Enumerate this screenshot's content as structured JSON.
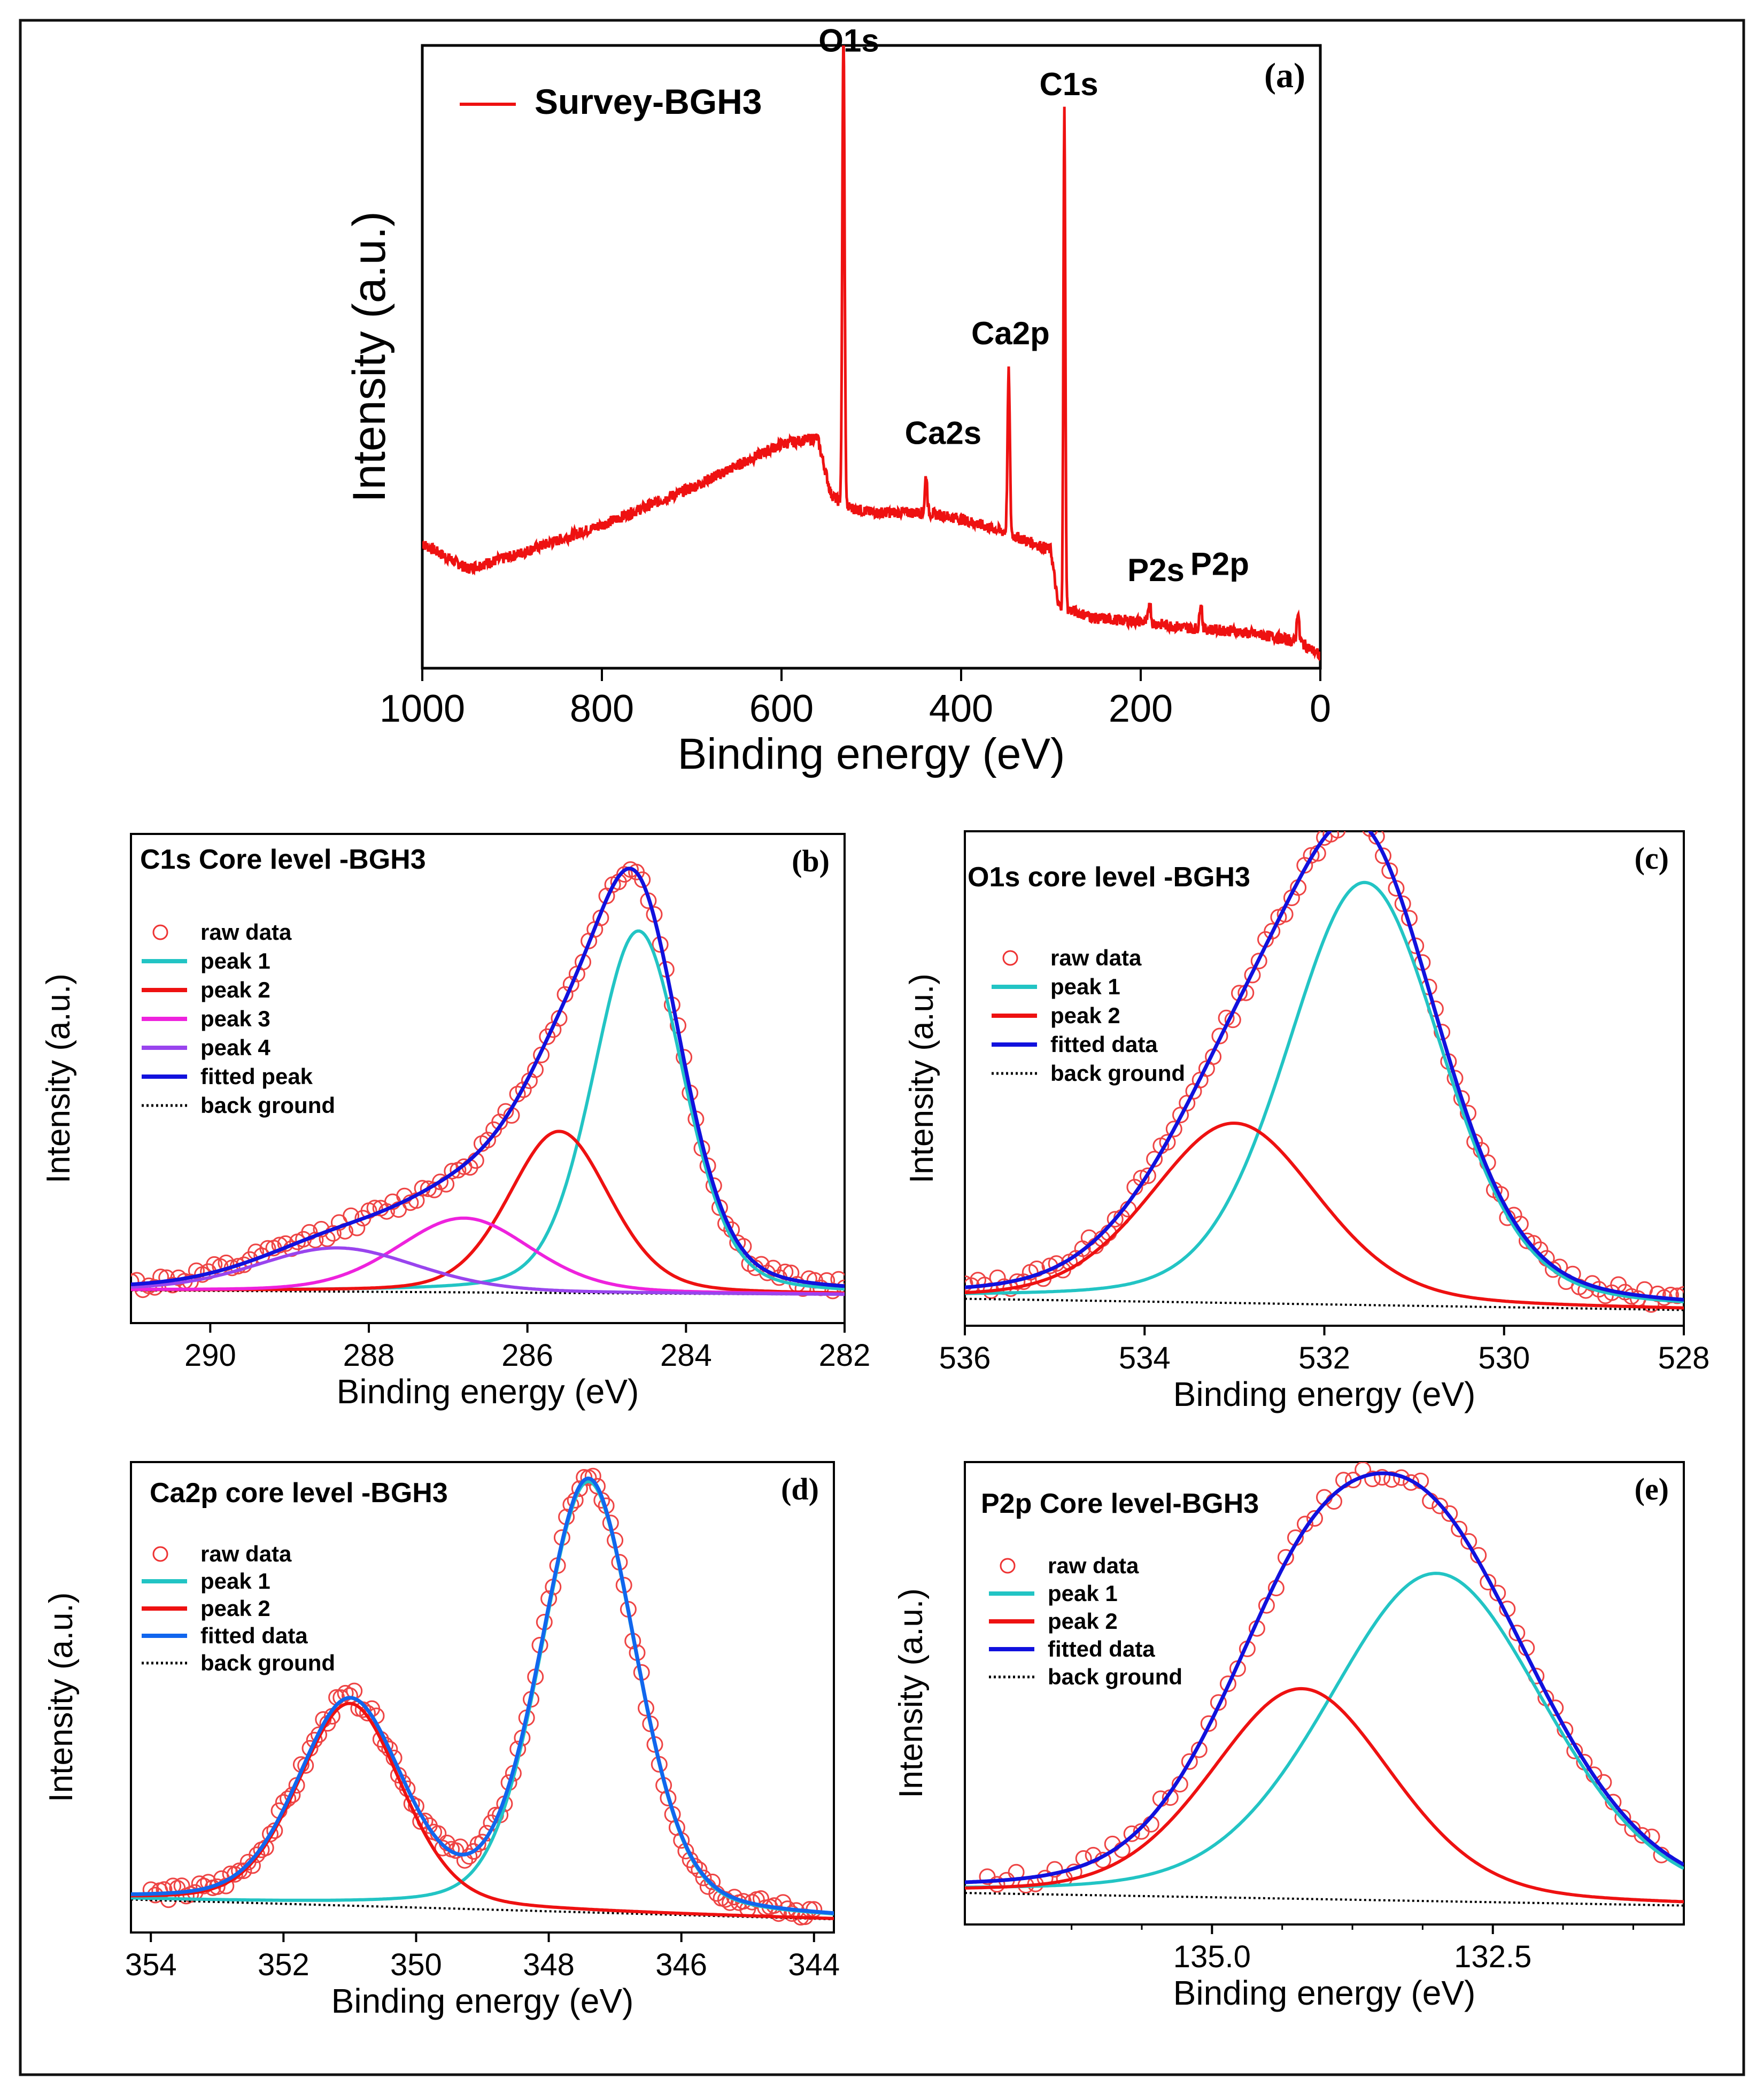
{
  "figure": {
    "panels": [
      "a",
      "b",
      "c",
      "d",
      "e"
    ]
  },
  "chart_data": [
    {
      "panel": "(a)",
      "type": "line",
      "title": "",
      "xlabel": "Binding energy (eV)",
      "ylabel": "Intensity (a.u.)",
      "xlim": [
        1000,
        0
      ],
      "ylim": [
        0,
        1
      ],
      "xticks": [
        1000,
        800,
        600,
        400,
        200,
        0
      ],
      "legend": [
        {
          "label": "Survey-BGH3",
          "color": "#ee1111",
          "style": "line"
        }
      ],
      "legend_position": "top-left",
      "baseline": [
        [
          1000,
          0.2
        ],
        [
          975,
          0.18
        ],
        [
          950,
          0.16
        ],
        [
          900,
          0.18
        ],
        [
          800,
          0.23
        ],
        [
          700,
          0.29
        ],
        [
          600,
          0.36
        ],
        [
          560,
          0.37
        ],
        [
          545,
          0.28
        ],
        [
          530,
          0.26
        ],
        [
          500,
          0.25
        ],
        [
          440,
          0.25
        ],
        [
          400,
          0.24
        ],
        [
          355,
          0.22
        ],
        [
          300,
          0.19
        ],
        [
          292,
          0.1
        ],
        [
          250,
          0.08
        ],
        [
          200,
          0.075
        ],
        [
          150,
          0.065
        ],
        [
          100,
          0.06
        ],
        [
          50,
          0.05
        ],
        [
          20,
          0.04
        ],
        [
          0,
          0.02
        ]
      ],
      "peaks": [
        {
          "name": "O1s",
          "x": 531,
          "height": 0.76,
          "width": 3
        },
        {
          "name": "Ca2s",
          "x": 439,
          "height": 0.06,
          "width": 3
        },
        {
          "name": "Ca2p",
          "x": 347,
          "height": 0.26,
          "width": 3
        },
        {
          "name": "C1s",
          "x": 285,
          "height": 0.8,
          "width": 2.5
        },
        {
          "name": "P2s",
          "x": 190,
          "height": 0.035,
          "width": 3
        },
        {
          "name": "P2p",
          "x": 133,
          "height": 0.045,
          "width": 3
        },
        {
          "name": "",
          "x": 25,
          "height": 0.05,
          "width": 3
        }
      ],
      "peak_labels": [
        {
          "text": "O1s",
          "x": 525,
          "y": 0.99
        },
        {
          "text": "Ca2s",
          "x": 420,
          "y": 0.36
        },
        {
          "text": "Ca2p",
          "x": 345,
          "y": 0.52
        },
        {
          "text": "C1s",
          "x": 280,
          "y": 0.92
        },
        {
          "text": "P2s",
          "x": 183,
          "y": 0.14
        },
        {
          "text": "P2p",
          "x": 112,
          "y": 0.15
        }
      ]
    },
    {
      "panel": "(b)",
      "type": "line",
      "title": "C1s Core level -BGH3",
      "xlabel": "Binding energy (eV)",
      "ylabel": "Intensity (a.u.)",
      "xlim": [
        291,
        282
      ],
      "ylim": [
        -0.07,
        1.05
      ],
      "xticks": [
        290,
        288,
        286,
        284,
        282
      ],
      "legend": [
        {
          "label": "raw data",
          "color": "#ee3333",
          "style": "circle"
        },
        {
          "label": "peak 1",
          "color": "#22c4c4",
          "style": "line"
        },
        {
          "label": "peak 2",
          "color": "#ee1111",
          "style": "line"
        },
        {
          "label": "peak 3",
          "color": "#ee22dd",
          "style": "line"
        },
        {
          "label": "peak 4",
          "color": "#9944ee",
          "style": "line"
        },
        {
          "label": "fitted peak",
          "color": "#1111dd",
          "style": "line"
        },
        {
          "label": "back ground",
          "color": "#000000",
          "style": "dotted"
        }
      ],
      "legend_position": "top-left",
      "background": {
        "y_left": 0.005,
        "y_right": -0.005
      },
      "components": [
        {
          "name": "peak 1",
          "center": 284.6,
          "fwhm": 1.35,
          "height": 0.83
        },
        {
          "name": "peak 2",
          "center": 285.6,
          "fwhm": 1.5,
          "height": 0.37
        },
        {
          "name": "peak 3",
          "center": 286.8,
          "fwhm": 2.0,
          "height": 0.17
        },
        {
          "name": "peak 4",
          "center": 288.4,
          "fwhm": 2.4,
          "height": 0.1
        }
      ],
      "raw_range": [
        291,
        282
      ],
      "raw_n": 120
    },
    {
      "panel": "(c)",
      "type": "line",
      "title": "O1s core level -BGH3",
      "xlabel": "Binding energy (eV)",
      "ylabel": "Intensity (a.u.)",
      "xlim": [
        536,
        528
      ],
      "ylim": [
        -0.04,
        1.06
      ],
      "xticks": [
        536,
        534,
        532,
        530,
        528
      ],
      "legend": [
        {
          "label": "raw data",
          "color": "#ee3333",
          "style": "circle"
        },
        {
          "label": "peak 1",
          "color": "#22c4c4",
          "style": "line"
        },
        {
          "label": "peak 2",
          "color": "#ee1111",
          "style": "line"
        },
        {
          "label": "fitted data",
          "color": "#1111dd",
          "style": "line"
        },
        {
          "label": "back ground",
          "color": "#000000",
          "style": "dotted"
        }
      ],
      "legend_position": "top-left",
      "background": {
        "y_left": 0.02,
        "y_right": -0.005
      },
      "components": [
        {
          "name": "peak 1",
          "center": 531.55,
          "fwhm": 2.05,
          "height": 0.94
        },
        {
          "name": "peak 2",
          "center": 533.0,
          "fwhm": 2.2,
          "height": 0.4
        }
      ],
      "raw_range": [
        536,
        528
      ],
      "raw_n": 110
    },
    {
      "panel": "(d)",
      "type": "line",
      "title": "Ca2p core level -BGH3",
      "xlabel": "Binding energy (eV)",
      "ylabel": "Intensity (a.u.)",
      "xlim": [
        354.3,
        343.7
      ],
      "ylim": [
        -0.03,
        1.04
      ],
      "xticks": [
        354,
        352,
        350,
        348,
        346,
        344
      ],
      "legend": [
        {
          "label": "raw data",
          "color": "#ee3333",
          "style": "circle"
        },
        {
          "label": "peak 1",
          "color": "#22c4c4",
          "style": "line"
        },
        {
          "label": "peak 2",
          "color": "#ee1111",
          "style": "line"
        },
        {
          "label": "fitted data",
          "color": "#1166ee",
          "style": "line"
        },
        {
          "label": "back ground",
          "color": "#000000",
          "style": "dotted"
        }
      ],
      "legend_position": "top-left",
      "background": {
        "y_left": 0.045,
        "y_right": 0.0
      },
      "components": [
        {
          "name": "peak 1",
          "center": 347.4,
          "fwhm": 1.7,
          "height": 0.98
        },
        {
          "name": "peak 2",
          "center": 351.0,
          "fwhm": 1.85,
          "height": 0.46
        }
      ],
      "raw_range": [
        354,
        344
      ],
      "raw_n": 150
    },
    {
      "panel": "(e)",
      "type": "line",
      "title": "P2p Core level-BGH3",
      "xlabel": "Binding energy (eV)",
      "ylabel": "Intensity (a.u.)",
      "xlim": [
        137.2,
        130.8
      ],
      "ylim": [
        -0.04,
        1.06
      ],
      "xticks": [
        135.0,
        132.5
      ],
      "xtick_labels": [
        "135.0",
        "132.5"
      ],
      "legend": [
        {
          "label": "raw data",
          "color": "#ee3333",
          "style": "circle"
        },
        {
          "label": "peak 1",
          "color": "#22c4c4",
          "style": "line"
        },
        {
          "label": "peak 2",
          "color": "#ee1111",
          "style": "line"
        },
        {
          "label": "fitted data",
          "color": "#1111dd",
          "style": "line"
        },
        {
          "label": "back ground",
          "color": "#000000",
          "style": "dotted"
        }
      ],
      "legend_position": "top-left",
      "background": {
        "y_left": 0.035,
        "y_right": 0.005
      },
      "components": [
        {
          "name": "peak 1",
          "center": 133.0,
          "fwhm": 2.3,
          "height": 0.78
        },
        {
          "name": "peak 2",
          "center": 134.2,
          "fwhm": 1.9,
          "height": 0.5
        }
      ],
      "raw_range": [
        137,
        131
      ],
      "raw_n": 70
    }
  ]
}
